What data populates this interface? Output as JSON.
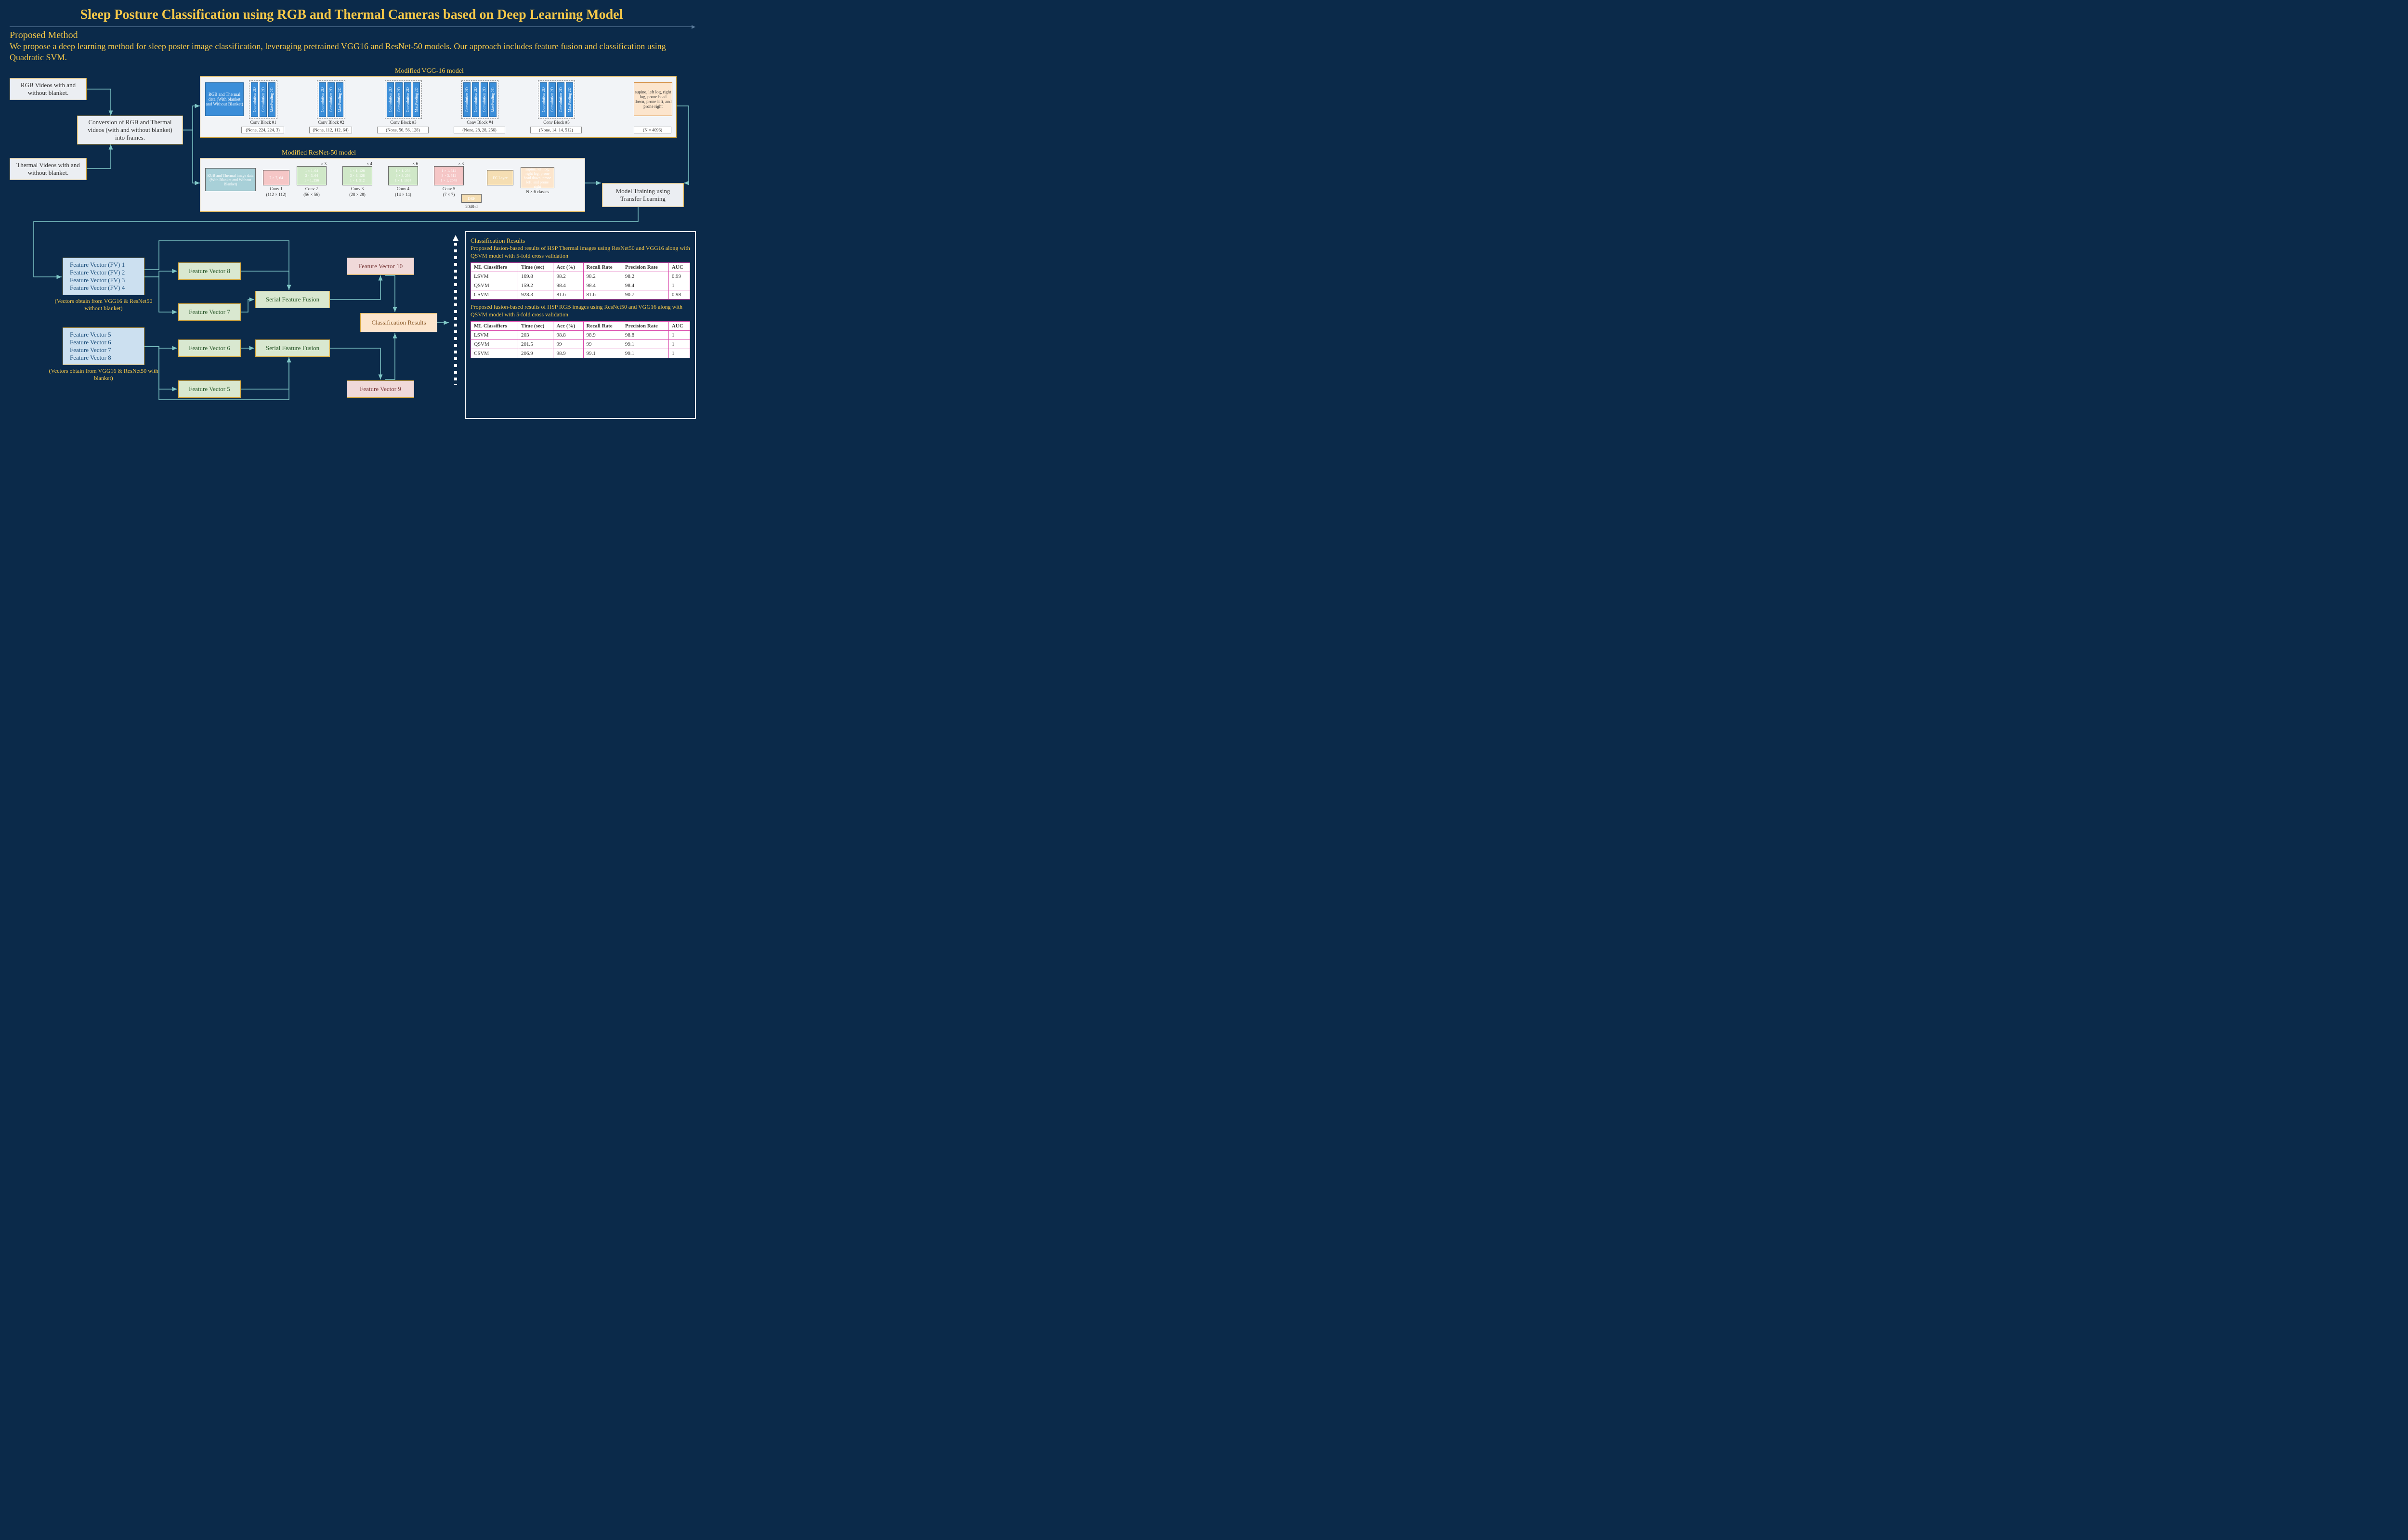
{
  "title": "Sleep Posture Classification using RGB and Thermal Cameras based on Deep Learning Model",
  "subtitle": "Proposed Method",
  "description": "We propose a deep learning method for sleep poster image classification, leveraging pretrained VGG16 and ResNet-50 models. Our approach includes feature fusion and classification using Quadratic SVM.",
  "input_boxes": {
    "rgb": "RGB Videos with and without blanket.",
    "thermal": "Thermal Videos with and without blanket.",
    "conversion": "Conversion of RGB and Thermal videos (with and without blanket) into frames.",
    "training": "Model Training using Transfer Learning"
  },
  "vgg": {
    "label": "Modified VGG-16 model",
    "input": "RGB and Thermal data (With blanket and Without Blanket)",
    "output": "supine, left log, right log, prone head down, prone left, and prone right",
    "blocks": [
      {
        "name": "Conv Block #1",
        "layers": [
          "Convolution 2D",
          "Convolution 2D",
          "MaxPooling 2D"
        ],
        "shape": "(None, 224, 224, 3)"
      },
      {
        "name": "Conv Block #2",
        "layers": [
          "Convolution 2D",
          "Convolution 2D",
          "MaxPooling 2D"
        ],
        "shape": "(None, 112, 112, 64)"
      },
      {
        "name": "Conv Block #3",
        "layers": [
          "Convolution 2D",
          "Convolution 2D",
          "Convolution 2D",
          "MaxPooling 2D"
        ],
        "shape": "(None, 56, 56, 128)"
      },
      {
        "name": "Conv Block #4",
        "layers": [
          "Convolution 2D",
          "Convolution 2D",
          "Convolution 2D",
          "MaxPooling 2D"
        ],
        "shape": "(None, 28, 28, 256)"
      },
      {
        "name": "Conv Block #5",
        "layers": [
          "Convolution 2D",
          "Convolution 2D",
          "Convolution 2D",
          "MaxPooling 2D"
        ],
        "shape": "(None, 14, 14, 512)"
      }
    ],
    "out_shape": "(N × 4096)"
  },
  "resnet": {
    "label": "Modified ResNet-50 model",
    "input": "RGB and Thermal image data (With Blanket and Without Blanket)",
    "output": "supine, left log, right log, prone head down, prone left, and prone right",
    "conv1": {
      "label": "7 × 7, 64",
      "name": "Conv 1",
      "sub": "(112 × 112)"
    },
    "blocks": [
      {
        "mult": "× 3",
        "lines": [
          "1 × 1, 64",
          "3 × 3, 64",
          "1 × 1, 256"
        ],
        "name": "Conv 2",
        "sub": "(56 × 56)"
      },
      {
        "mult": "× 4",
        "lines": [
          "1 × 1, 128",
          "3 × 3, 128",
          "1 × 1, 512"
        ],
        "name": "Conv 3",
        "sub": "(28 × 28)"
      },
      {
        "mult": "× 6",
        "lines": [
          "1 × 1, 256",
          "3 × 3, 256",
          "1 × 1, 1024"
        ],
        "name": "Conv 4",
        "sub": "(14 × 14)"
      },
      {
        "mult": "× 3",
        "lines": [
          "1 × 1, 512",
          "3 × 3, 512",
          "1 × 1, 2048"
        ],
        "name": "Conv 5",
        "sub": "(7 × 7)"
      }
    ],
    "fc": "FC Layer",
    "drf": "DRF",
    "drf_dim": "2048-d",
    "out_classes": "N × 6 classes"
  },
  "fv": {
    "group1_lines": [
      "Feature Vector (FV) 1",
      "Feature Vector (FV) 2",
      "Feature Vector (FV) 3",
      "Feature Vector (FV) 4"
    ],
    "group1_caption": "(Vectors obtain from VGG16 & ResNet50 without blanket)",
    "group2_lines": [
      "Feature Vector 5",
      "Feature Vector 6",
      "Feature Vector 7",
      "Feature Vector 8"
    ],
    "group2_caption": "(Vectors obtain from VGG16 & ResNet50 with blanket)",
    "fv5": "Feature Vector 5",
    "fv6": "Feature Vector 6",
    "fv7": "Feature Vector 7",
    "fv8": "Feature Vector 8",
    "fv9": "Feature Vector 9",
    "fv10": "Feature Vector 10",
    "sff": "Serial Feature Fusion",
    "class_results": "Classification Results"
  },
  "results": {
    "title": "Classification Results",
    "desc1": "Proposed fusion-based results of HSP Thermal images using ResNet50 and VGG16 along with QSVM model with 5-fold cross validation",
    "desc2": "Proposed fusion-based results of HSP RGB images using ResNet50 and VGG16 along with QSVM model with 5-fold cross validation",
    "headers": [
      "ML Classifiers",
      "Time (sec)",
      "Acc (%)",
      "Recall Rate",
      "Precision Rate",
      "AUC"
    ],
    "table1": [
      [
        "LSVM",
        "169.8",
        "98.2",
        "98.2",
        "98.2",
        "0.99"
      ],
      [
        "QSVM",
        "159.2",
        "98.4",
        "98.4",
        "98.4",
        "1"
      ],
      [
        "CSVM",
        "928.3",
        "81.6",
        "81.6",
        "90.7",
        "0.98"
      ]
    ],
    "table2": [
      [
        "LSVM",
        "203",
        "98.8",
        "98.9",
        "98.8",
        "1"
      ],
      [
        "QSVM",
        "201.5",
        "99",
        "99",
        "99.1",
        "1"
      ],
      [
        "CSVM",
        "206.9",
        "98.9",
        "99.1",
        "99.1",
        "1"
      ]
    ]
  },
  "colors": {
    "bg": "#0b2a4a",
    "accent": "#f7c948",
    "box_border": "#d4a53a",
    "blue": "#3b8ed9",
    "arrow": "#7fc6c6"
  }
}
